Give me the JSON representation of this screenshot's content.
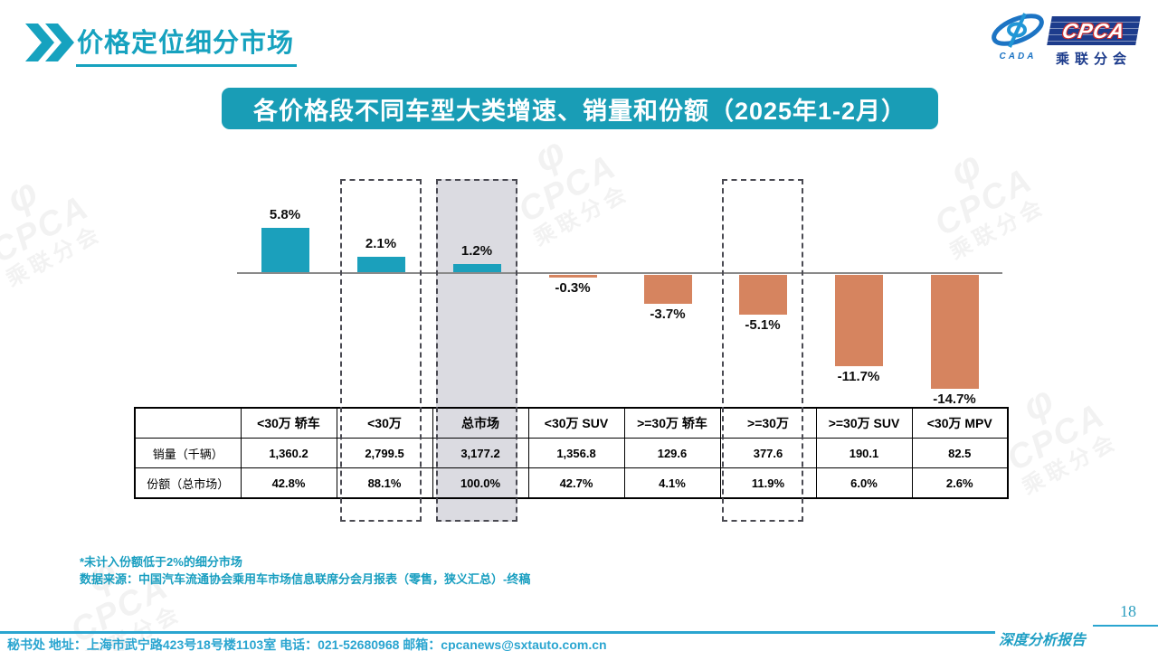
{
  "page": {
    "title": "价格定位细分市场"
  },
  "logo": {
    "cada_text": "CADA",
    "cpca_text": "CPCA",
    "subtitle": "乘联分会",
    "brand_blue": "#1D3C8C",
    "brand_red": "#CF2B2B"
  },
  "banner": {
    "title": "各价格段不同车型大类增速、销量和份额（2025年1-2月）"
  },
  "chart_data": {
    "type": "bar",
    "title": "各价格段不同车型大类增速、销量和份额（2025年1-2月）",
    "categories": [
      "<30万 轿车",
      "<30万",
      "总市场",
      "<30万 SUV",
      ">=30万 轿车",
      ">=30万",
      ">=30万 SUV",
      "<30万 MPV"
    ],
    "values": [
      5.8,
      2.1,
      1.2,
      -0.3,
      -3.7,
      -5.1,
      -11.7,
      -14.7
    ],
    "value_labels": [
      "5.8%",
      "2.1%",
      "1.2%",
      "-0.3%",
      "-3.7%",
      "-5.1%",
      "-11.7%",
      "-14.7%"
    ],
    "ylim": [
      -16,
      8
    ],
    "grid": false,
    "legend": "none",
    "positive_color": "#1BA0BC",
    "negative_color": "#D6845F",
    "highlight_fill_color": "#DBDBE1",
    "highlight_boxes": [
      {
        "column_index": 1,
        "filled": false
      },
      {
        "column_index": 2,
        "filled": true
      },
      {
        "column_index": 5,
        "filled": false
      }
    ],
    "table": {
      "row_labels": [
        "销量（千辆）",
        "份额（总市场）"
      ],
      "rows": [
        [
          "1,360.2",
          "2,799.5",
          "3,177.2",
          "1,356.8",
          "129.6",
          "377.6",
          "190.1",
          "82.5"
        ],
        [
          "42.8%",
          "88.1%",
          "100.0%",
          "42.7%",
          "4.1%",
          "11.9%",
          "6.0%",
          "2.6%"
        ]
      ]
    }
  },
  "footnotes": {
    "line1": "*未计入份额低于2%的细分市场",
    "line2": "数据来源：中国汽车流通协会乘用车市场信息联席分会月报表（零售，狭义汇总）-终稿"
  },
  "footer": {
    "contact": "秘书处  地址：上海市武宁路423号18号楼1103室 电话：021-52680968  邮箱：cpcanews@sxtauto.com.cn",
    "report_label": "深度分析报告",
    "page_number": "18"
  },
  "watermark": {
    "phi": "φ",
    "main": "CPCA",
    "sub": "乘联分会"
  }
}
